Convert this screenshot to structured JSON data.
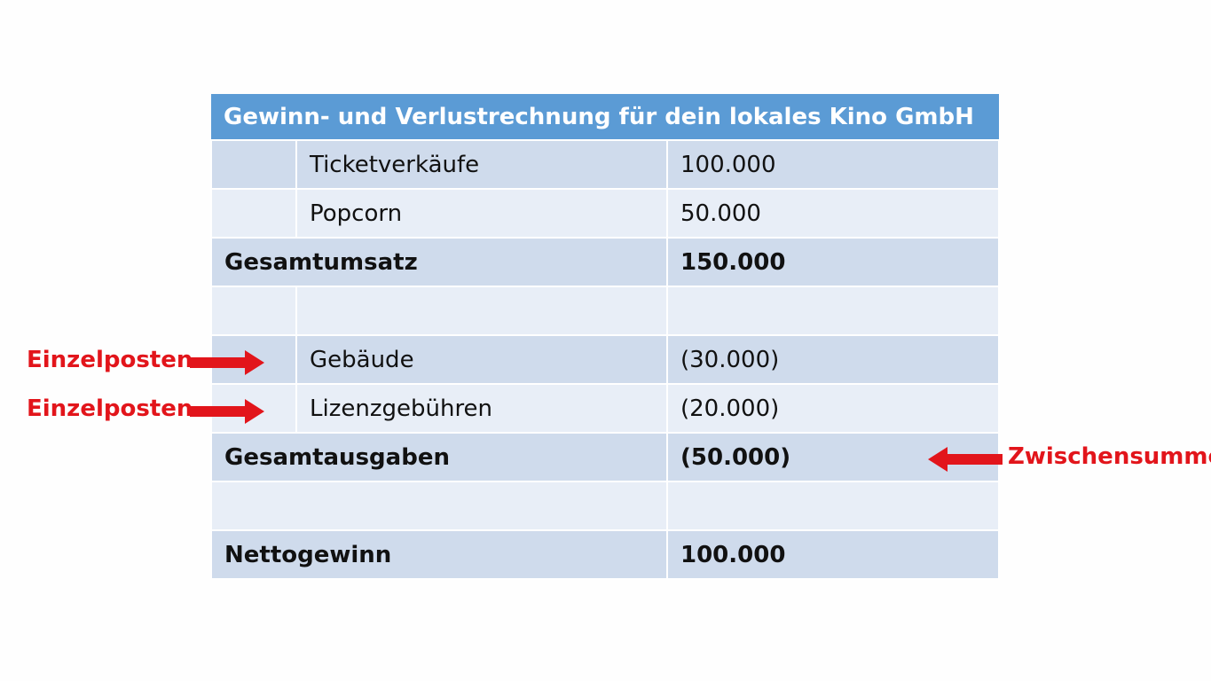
{
  "table": {
    "title": "Gewinn- und Verlustrechnung für dein lokales Kino GmbH",
    "rows": [
      {
        "indent": "",
        "label": "Ticketverkäufe",
        "value": "100.000"
      },
      {
        "indent": "",
        "label": "Popcorn",
        "value": "50.000"
      },
      {
        "label": "Gesamtumsatz",
        "value": "150.000"
      },
      {
        "indent": "",
        "label": "",
        "value": ""
      },
      {
        "indent": "",
        "label": "Gebäude",
        "value": "(30.000)"
      },
      {
        "indent": "",
        "label": "Lizenzgebühren",
        "value": "(20.000)"
      },
      {
        "label": "Gesamtausgaben",
        "value": "(50.000)"
      },
      {
        "label": "",
        "value": ""
      },
      {
        "label": "Nettogewinn",
        "value": "100.000"
      }
    ]
  },
  "annotations": {
    "line_item_1": "Einzelposten",
    "line_item_2": "Einzelposten",
    "subtotal": "Zwischensumme"
  },
  "colors": {
    "header": "#5b9bd5",
    "row_dark": "#cfdbec",
    "row_light": "#e8eef7",
    "annotation": "#e2151b"
  }
}
